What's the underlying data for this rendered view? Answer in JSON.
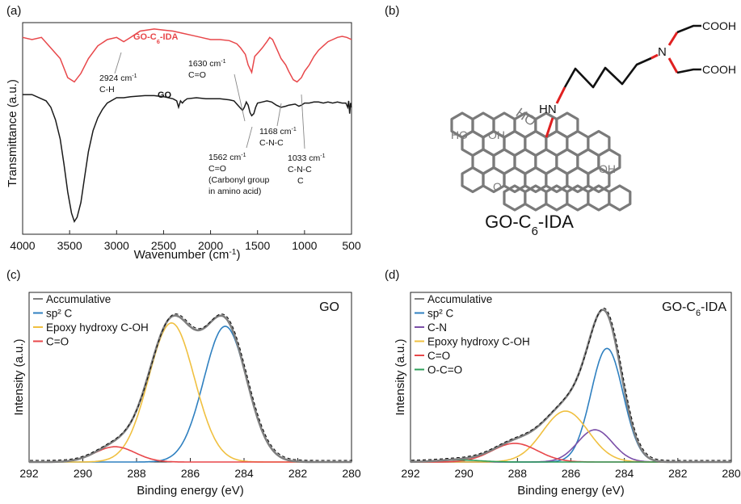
{
  "colors": {
    "black": "#1a1a1a",
    "red": "#e8474a",
    "blue": "#2f80c0",
    "yellow": "#f0c040",
    "purple": "#7b4fa8",
    "green": "#2ea05a",
    "gray": "#7f7f7f",
    "dashed": "#111111",
    "structure": "#7a7a7a",
    "linker": "#e02020"
  },
  "panel_labels": {
    "a": "(a)",
    "b": "(b)",
    "c": "(c)",
    "d": "(d)"
  },
  "structure": {
    "name_prefix": "GO-C",
    "name_sub": "6",
    "name_suffix": "-IDA",
    "cooh_top": "COOH",
    "cooh_bottom": "COOH",
    "n_label": "N",
    "hn_label": "HN",
    "ho_label": "HO",
    "oh_label": "OH",
    "o_label": "O"
  },
  "chart_data": [
    {
      "type": "line",
      "id": "ftir",
      "xlabel": "Wavenumber (cm",
      "xlabel_sup": "-1",
      "xlabel_end": ")",
      "ylabel": "Transmittance (a.u.)",
      "xlim": [
        4000,
        500
      ],
      "xticks": [
        4000,
        3500,
        3000,
        2500,
        2000,
        1500,
        1000,
        500
      ],
      "series": [
        {
          "name_prefix": "GO-C",
          "name_sub": "6",
          "name_suffix": "-IDA",
          "color": "red",
          "points": [
            [
              4000,
              0.93
            ],
            [
              3900,
              0.92
            ],
            [
              3800,
              0.93
            ],
            [
              3700,
              0.88
            ],
            [
              3600,
              0.83
            ],
            [
              3520,
              0.74
            ],
            [
              3450,
              0.72
            ],
            [
              3380,
              0.76
            ],
            [
              3300,
              0.83
            ],
            [
              3200,
              0.89
            ],
            [
              3100,
              0.92
            ],
            [
              3000,
              0.93
            ],
            [
              2924,
              0.91
            ],
            [
              2850,
              0.93
            ],
            [
              2750,
              0.96
            ],
            [
              2600,
              0.97
            ],
            [
              2500,
              0.965
            ],
            [
              2400,
              0.96
            ],
            [
              2300,
              0.95
            ],
            [
              2200,
              0.94
            ],
            [
              2100,
              0.93
            ],
            [
              2000,
              0.92
            ],
            [
              1900,
              0.92
            ],
            [
              1800,
              0.915
            ],
            [
              1720,
              0.9
            ],
            [
              1680,
              0.88
            ],
            [
              1630,
              0.85
            ],
            [
              1600,
              0.8
            ],
            [
              1562,
              0.765
            ],
            [
              1530,
              0.84
            ],
            [
              1490,
              0.86
            ],
            [
              1450,
              0.88
            ],
            [
              1400,
              0.91
            ],
            [
              1370,
              0.93
            ],
            [
              1340,
              0.92
            ],
            [
              1300,
              0.88
            ],
            [
              1250,
              0.83
            ],
            [
              1200,
              0.8
            ],
            [
              1168,
              0.77
            ],
            [
              1120,
              0.73
            ],
            [
              1080,
              0.72
            ],
            [
              1033,
              0.74
            ],
            [
              1000,
              0.77
            ],
            [
              950,
              0.8
            ],
            [
              900,
              0.84
            ],
            [
              850,
              0.87
            ],
            [
              800,
              0.89
            ],
            [
              750,
              0.91
            ],
            [
              700,
              0.92
            ],
            [
              650,
              0.93
            ],
            [
              600,
              0.935
            ],
            [
              550,
              0.93
            ],
            [
              500,
              0.92
            ]
          ]
        },
        {
          "name": "GO",
          "color": "black",
          "points": [
            [
              4000,
              0.66
            ],
            [
              3900,
              0.66
            ],
            [
              3800,
              0.64
            ],
            [
              3750,
              0.63
            ],
            [
              3700,
              0.6
            ],
            [
              3650,
              0.54
            ],
            [
              3600,
              0.45
            ],
            [
              3560,
              0.33
            ],
            [
              3520,
              0.2
            ],
            [
              3480,
              0.1
            ],
            [
              3450,
              0.06
            ],
            [
              3420,
              0.08
            ],
            [
              3380,
              0.15
            ],
            [
              3340,
              0.27
            ],
            [
              3300,
              0.39
            ],
            [
              3250,
              0.49
            ],
            [
              3200,
              0.55
            ],
            [
              3150,
              0.59
            ],
            [
              3100,
              0.62
            ],
            [
              3000,
              0.645
            ],
            [
              2924,
              0.645
            ],
            [
              2850,
              0.65
            ],
            [
              2700,
              0.655
            ],
            [
              2600,
              0.655
            ],
            [
              2500,
              0.65
            ],
            [
              2400,
              0.64
            ],
            [
              2360,
              0.63
            ],
            [
              2340,
              0.6
            ],
            [
              2320,
              0.63
            ],
            [
              2300,
              0.62
            ],
            [
              2280,
              0.63
            ],
            [
              2250,
              0.64
            ],
            [
              2150,
              0.645
            ],
            [
              2050,
              0.64
            ],
            [
              2000,
              0.64
            ],
            [
              1900,
              0.64
            ],
            [
              1800,
              0.635
            ],
            [
              1750,
              0.63
            ],
            [
              1720,
              0.615
            ],
            [
              1690,
              0.6
            ],
            [
              1660,
              0.585
            ],
            [
              1640,
              0.6
            ],
            [
              1620,
              0.625
            ],
            [
              1600,
              0.61
            ],
            [
              1580,
              0.575
            ],
            [
              1562,
              0.56
            ],
            [
              1540,
              0.57
            ],
            [
              1520,
              0.6
            ],
            [
              1500,
              0.62
            ],
            [
              1450,
              0.625
            ],
            [
              1400,
              0.63
            ],
            [
              1350,
              0.625
            ],
            [
              1300,
              0.61
            ],
            [
              1250,
              0.6
            ],
            [
              1200,
              0.605
            ],
            [
              1168,
              0.61
            ],
            [
              1100,
              0.615
            ],
            [
              1060,
              0.605
            ],
            [
              1033,
              0.61
            ],
            [
              1000,
              0.62
            ],
            [
              950,
              0.62
            ],
            [
              900,
              0.625
            ],
            [
              850,
              0.625
            ],
            [
              800,
              0.62
            ],
            [
              750,
              0.625
            ],
            [
              700,
              0.62
            ],
            [
              650,
              0.625
            ],
            [
              600,
              0.62
            ],
            [
              560,
              0.62
            ],
            [
              540,
              0.6
            ],
            [
              530,
              0.63
            ],
            [
              520,
              0.57
            ],
            [
              510,
              0.62
            ],
            [
              500,
              0.6
            ]
          ]
        }
      ],
      "annotations": [
        {
          "wavenumber": 2924,
          "line1_main": "2924 cm",
          "line1_sup": "-1",
          "line2": "C-H"
        },
        {
          "wavenumber": 1630,
          "line1_main": "1630 cm",
          "line1_sup": "-1",
          "line2": "C=O"
        },
        {
          "wavenumber": 1562,
          "line1_main": "1562 cm",
          "line1_sup": "-1",
          "line2": "C=O",
          "line3": "(Carbonyl group",
          "line4": "in amino acid)"
        },
        {
          "wavenumber": 1168,
          "line1_main": "1168 cm",
          "line1_sup": "-1",
          "line2": "C-N-C"
        },
        {
          "wavenumber": 1033,
          "line1_main": "1033 cm",
          "line1_sup": "-1",
          "line2": "C-N-C",
          "line3": "C"
        }
      ]
    },
    {
      "type": "area",
      "id": "xps_go",
      "title": "GO",
      "xlabel": "Binding energy (eV)",
      "ylabel": "Intensity (a.u.)",
      "xlim": [
        292,
        280
      ],
      "xticks": [
        292,
        290,
        288,
        286,
        284,
        282,
        280
      ],
      "components": [
        {
          "name": "Accumulative",
          "color": "gray",
          "kind": "sum"
        },
        {
          "name": "sp² C",
          "color": "blue",
          "center": 284.7,
          "height": 0.8,
          "sigma": 0.8
        },
        {
          "name": "Epoxy hydroxy C-OH",
          "color": "yellow",
          "center": 286.7,
          "height": 0.82,
          "sigma": 0.85
        },
        {
          "name": "C=O",
          "color": "red",
          "center": 288.8,
          "height": 0.09,
          "sigma": 0.75
        }
      ],
      "legend_position": "top-left"
    },
    {
      "type": "area",
      "id": "xps_go_ida",
      "title_prefix": "GO-C",
      "title_sub": "6",
      "title_suffix": "-IDA",
      "xlabel": "Binding energy (eV)",
      "ylabel": "Intensity (a.u.)",
      "xlim": [
        292,
        280
      ],
      "xticks": [
        292,
        290,
        288,
        286,
        284,
        282,
        280
      ],
      "components": [
        {
          "name": "Accumulative",
          "color": "gray",
          "kind": "sum"
        },
        {
          "name": "sp² C",
          "color": "blue",
          "center": 284.65,
          "height": 0.67,
          "sigma": 0.6
        },
        {
          "name": "C-N",
          "color": "purple",
          "center": 285.1,
          "height": 0.19,
          "sigma": 0.65
        },
        {
          "name": "Epoxy hydroxy C-OH",
          "color": "yellow",
          "center": 286.2,
          "height": 0.3,
          "sigma": 0.85
        },
        {
          "name": "C=O",
          "color": "red",
          "center": 288.1,
          "height": 0.11,
          "sigma": 0.85
        },
        {
          "name": "O-C=O",
          "color": "green",
          "center": 290.2,
          "height": 0.012,
          "sigma": 0.8
        }
      ],
      "legend_position": "top-left"
    }
  ]
}
